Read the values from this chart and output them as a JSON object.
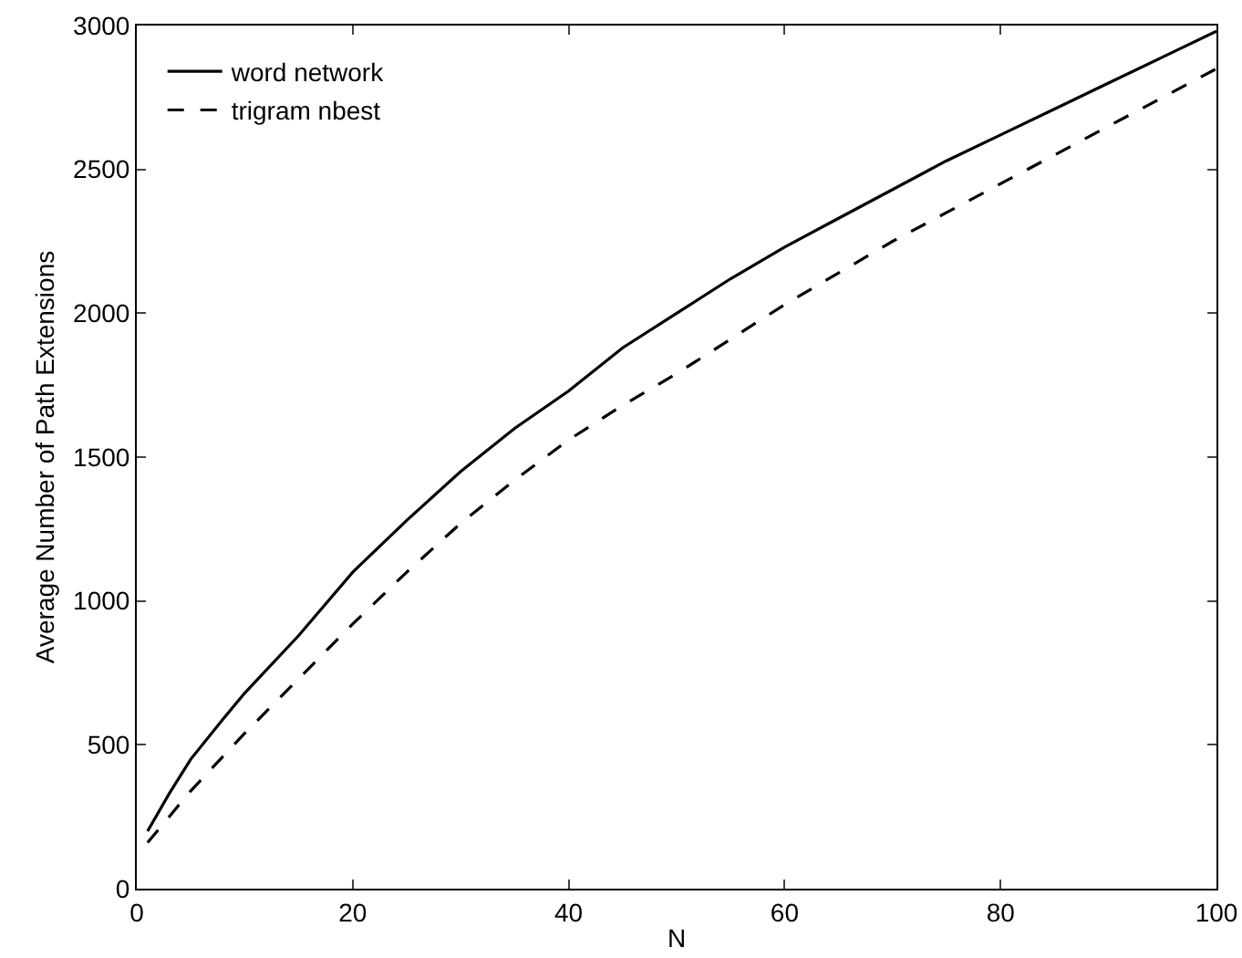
{
  "chart_data": {
    "type": "line",
    "xlabel": "N",
    "ylabel": "Average Number of Path Extensions",
    "x": [
      1,
      3,
      5,
      8,
      10,
      15,
      20,
      25,
      30,
      35,
      40,
      45,
      50,
      55,
      60,
      65,
      70,
      75,
      80,
      85,
      90,
      95,
      100
    ],
    "series": [
      {
        "name": "word network",
        "color": "#000000",
        "line_style": "solid",
        "values": [
          200,
          330,
          450,
          590,
          680,
          880,
          1100,
          1280,
          1450,
          1600,
          1730,
          1880,
          2000,
          2120,
          2230,
          2330,
          2430,
          2530,
          2620,
          2710,
          2800,
          2890,
          2980
        ]
      },
      {
        "name": "trigram nbest",
        "color": "#000000",
        "line_style": "dashed",
        "values": [
          160,
          250,
          340,
          460,
          540,
          730,
          920,
          1100,
          1270,
          1420,
          1560,
          1680,
          1790,
          1910,
          2030,
          2140,
          2250,
          2350,
          2450,
          2550,
          2650,
          2750,
          2850
        ]
      }
    ],
    "xlim": [
      0,
      100
    ],
    "xticks": [
      0,
      20,
      40,
      60,
      80,
      100
    ],
    "ylim": [
      0,
      3000
    ],
    "yticks": [
      0,
      500,
      1000,
      1500,
      2000,
      2500,
      3000
    ],
    "grid": false,
    "legend": "top left",
    "marker": "none"
  }
}
